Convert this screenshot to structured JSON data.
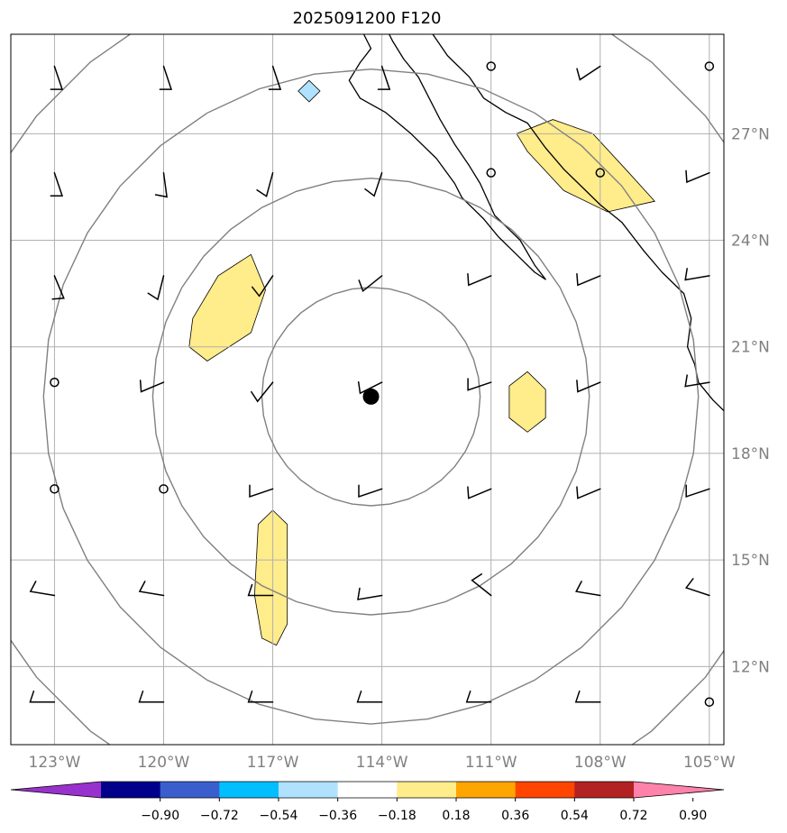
{
  "title": "2025091200 F120",
  "map": {
    "lon_range": [
      -124.2,
      -104.6
    ],
    "lat_range": [
      9.8,
      29.8
    ],
    "lon_ticks": [
      {
        "value": -123,
        "label": "123°W"
      },
      {
        "value": -120,
        "label": "120°W"
      },
      {
        "value": -117,
        "label": "117°W"
      },
      {
        "value": -114,
        "label": "114°W"
      },
      {
        "value": -111,
        "label": "111°W"
      },
      {
        "value": -108,
        "label": "108°W"
      },
      {
        "value": -105,
        "label": "105°W"
      }
    ],
    "lat_ticks": [
      {
        "value": 27,
        "label": "27°N"
      },
      {
        "value": 24,
        "label": "24°N"
      },
      {
        "value": 21,
        "label": "21°N"
      },
      {
        "value": 18,
        "label": "18°N"
      },
      {
        "value": 15,
        "label": "15°N"
      },
      {
        "value": 12,
        "label": "12°N"
      }
    ],
    "storm_center": {
      "lon": -114.3,
      "lat": 19.6
    },
    "range_rings_deg": [
      3,
      6,
      9,
      12
    ],
    "grid": true,
    "colors": {
      "grid": "#b0b0b0",
      "rings": "#808080",
      "coast": "#000000"
    }
  },
  "colorbar": {
    "colors": [
      "#9932cc",
      "#00008b",
      "#3a5fcd",
      "#00bfff",
      "#b0e2ff",
      "#ffffff",
      "#ffec8b",
      "#ffa500",
      "#ff4500",
      "#b22222",
      "#ff82ab"
    ],
    "labels": [
      "−0.90",
      "−0.72",
      "−0.54",
      "−0.36",
      "−0.18",
      "0.18",
      "0.36",
      "0.54",
      "0.72",
      "0.90"
    ]
  },
  "shaded_regions": [
    {
      "level": 0.18,
      "color": "#ffec8b",
      "points": [
        [
          -110.3,
          27.0
        ],
        [
          -109.3,
          27.4
        ],
        [
          -108.2,
          27.0
        ],
        [
          -107.3,
          26.0
        ],
        [
          -106.5,
          25.1
        ],
        [
          -107.8,
          24.8
        ],
        [
          -109.0,
          25.4
        ],
        [
          -110.0,
          26.5
        ]
      ]
    },
    {
      "level": 0.18,
      "color": "#ffec8b",
      "points": [
        [
          -119.2,
          21.8
        ],
        [
          -118.5,
          23.0
        ],
        [
          -117.6,
          23.6
        ],
        [
          -117.2,
          22.6
        ],
        [
          -117.6,
          21.4
        ],
        [
          -118.8,
          20.6
        ],
        [
          -119.3,
          21.0
        ]
      ]
    },
    {
      "level": 0.18,
      "color": "#ffec8b",
      "points": [
        [
          -110.5,
          19.9
        ],
        [
          -110.0,
          20.3
        ],
        [
          -109.5,
          19.8
        ],
        [
          -109.5,
          19.0
        ],
        [
          -110.0,
          18.6
        ],
        [
          -110.5,
          19.0
        ]
      ]
    },
    {
      "level": 0.18,
      "color": "#ffec8b",
      "points": [
        [
          -117.4,
          16.0
        ],
        [
          -117.0,
          16.4
        ],
        [
          -116.6,
          16.0
        ],
        [
          -116.6,
          13.2
        ],
        [
          -116.9,
          12.6
        ],
        [
          -117.3,
          12.8
        ],
        [
          -117.5,
          14.0
        ]
      ]
    },
    {
      "level": -0.18,
      "color": "#b0e2ff",
      "points": [
        [
          -116.0,
          28.5
        ],
        [
          -116.3,
          28.2
        ],
        [
          -116.0,
          27.9
        ],
        [
          -115.7,
          28.2
        ]
      ]
    }
  ],
  "barbs": [
    {
      "lon": -123,
      "lat": 28.9,
      "u": 5,
      "v": -15
    },
    {
      "lon": -120,
      "lat": 28.9,
      "u": 5,
      "v": -15
    },
    {
      "lon": -117,
      "lat": 28.9,
      "u": 5,
      "v": -15
    },
    {
      "lon": -114,
      "lat": 28.9,
      "u": 5,
      "v": -15
    },
    {
      "lon": -111,
      "lat": 28.9,
      "calm": true
    },
    {
      "lon": -108,
      "lat": 28.9,
      "u": -12,
      "v": -8
    },
    {
      "lon": -105,
      "lat": 28.9,
      "calm": true
    },
    {
      "lon": -123,
      "lat": 25.9,
      "u": 5,
      "v": -15
    },
    {
      "lon": -120,
      "lat": 25.9,
      "u": 2,
      "v": -15
    },
    {
      "lon": -117,
      "lat": 25.9,
      "u": -4,
      "v": -15
    },
    {
      "lon": -114,
      "lat": 25.9,
      "u": -4,
      "v": -12
    },
    {
      "lon": -111,
      "lat": 25.9,
      "calm": true
    },
    {
      "lon": -108,
      "lat": 25.9,
      "calm": true
    },
    {
      "lon": -105,
      "lat": 25.9,
      "u": -12,
      "v": -5
    },
    {
      "lon": -123,
      "lat": 23.0,
      "u": 5,
      "v": -12
    },
    {
      "lon": -120,
      "lat": 23.0,
      "u": -3,
      "v": -12
    },
    {
      "lon": -117,
      "lat": 23.0,
      "u": -8,
      "v": -12
    },
    {
      "lon": -114,
      "lat": 23.0,
      "u": -10,
      "v": -8
    },
    {
      "lon": -111,
      "lat": 23.0,
      "u": -12,
      "v": -5
    },
    {
      "lon": -108,
      "lat": 23.0,
      "u": -12,
      "v": -5
    },
    {
      "lon": -105,
      "lat": 23.0,
      "u": -12,
      "v": -2
    },
    {
      "lon": -123,
      "lat": 20.0,
      "calm": true
    },
    {
      "lon": -120,
      "lat": 20.0,
      "u": -12,
      "v": -5
    },
    {
      "lon": -117,
      "lat": 20.0,
      "u": -8,
      "v": -10
    },
    {
      "lon": -114,
      "lat": 20.0,
      "u": -10,
      "v": -5
    },
    {
      "lon": -111,
      "lat": 20.0,
      "u": -12,
      "v": -4
    },
    {
      "lon": -108,
      "lat": 20.0,
      "u": -12,
      "v": -5
    },
    {
      "lon": -105,
      "lat": 20.0,
      "u": -12,
      "v": -2
    },
    {
      "lon": -123,
      "lat": 17.0,
      "calm": true
    },
    {
      "lon": -120,
      "lat": 17.0,
      "calm": true
    },
    {
      "lon": -117,
      "lat": 17.0,
      "u": -12,
      "v": -4
    },
    {
      "lon": -114,
      "lat": 17.0,
      "u": -12,
      "v": -4
    },
    {
      "lon": -111,
      "lat": 17.0,
      "u": -12,
      "v": -5
    },
    {
      "lon": -108,
      "lat": 17.0,
      "u": -12,
      "v": -5
    },
    {
      "lon": -105,
      "lat": 17.0,
      "u": -12,
      "v": -4
    },
    {
      "lon": -123,
      "lat": 14.0,
      "u": -12,
      "v": 2
    },
    {
      "lon": -120,
      "lat": 14.0,
      "u": -12,
      "v": 2
    },
    {
      "lon": -117,
      "lat": 14.0,
      "u": -12,
      "v": 0
    },
    {
      "lon": -114,
      "lat": 14.0,
      "u": -12,
      "v": -2
    },
    {
      "lon": -111,
      "lat": 14.0,
      "u": -10,
      "v": 8
    },
    {
      "lon": -108,
      "lat": 14.0,
      "u": -12,
      "v": 2
    },
    {
      "lon": -105,
      "lat": 14.0,
      "u": -12,
      "v": 4
    },
    {
      "lon": -123,
      "lat": 11.0,
      "u": -12,
      "v": 0
    },
    {
      "lon": -120,
      "lat": 11.0,
      "u": -12,
      "v": 0
    },
    {
      "lon": -117,
      "lat": 11.0,
      "u": -12,
      "v": 0
    },
    {
      "lon": -114,
      "lat": 11.0,
      "u": -12,
      "v": 0
    },
    {
      "lon": -111,
      "lat": 11.0,
      "u": -12,
      "v": 0
    },
    {
      "lon": -108,
      "lat": 11.0,
      "u": -12,
      "v": 0
    },
    {
      "lon": -105,
      "lat": 11.0,
      "calm": true
    }
  ],
  "coastlines": [
    [
      [
        -114.5,
        29.8
      ],
      [
        -114.3,
        29.4
      ],
      [
        -114.6,
        29.0
      ],
      [
        -114.9,
        28.5
      ],
      [
        -114.6,
        28.0
      ],
      [
        -113.9,
        27.6
      ],
      [
        -113.2,
        27.0
      ],
      [
        -112.5,
        26.3
      ],
      [
        -112.0,
        25.6
      ],
      [
        -111.8,
        25.2
      ],
      [
        -111.2,
        24.6
      ],
      [
        -110.8,
        24.1
      ],
      [
        -110.3,
        23.6
      ],
      [
        -109.8,
        23.1
      ],
      [
        -109.5,
        22.9
      ],
      [
        -109.8,
        23.3
      ],
      [
        -110.2,
        24.0
      ],
      [
        -110.5,
        24.3
      ],
      [
        -110.9,
        24.7
      ],
      [
        -111.3,
        25.6
      ],
      [
        -111.6,
        26.1
      ],
      [
        -112.0,
        26.7
      ],
      [
        -112.4,
        27.4
      ],
      [
        -112.7,
        28.0
      ],
      [
        -113.0,
        28.6
      ],
      [
        -113.4,
        29.1
      ],
      [
        -113.7,
        29.6
      ],
      [
        -113.8,
        29.8
      ]
    ],
    [
      [
        -112.6,
        29.8
      ],
      [
        -112.2,
        29.2
      ],
      [
        -111.6,
        28.6
      ],
      [
        -111.2,
        28.0
      ],
      [
        -110.6,
        27.6
      ],
      [
        -110.0,
        27.3
      ],
      [
        -109.5,
        26.6
      ],
      [
        -109.0,
        26.0
      ],
      [
        -108.5,
        25.5
      ],
      [
        -108.0,
        25.0
      ],
      [
        -107.4,
        24.5
      ],
      [
        -106.8,
        23.7
      ],
      [
        -106.3,
        23.1
      ],
      [
        -105.7,
        22.5
      ],
      [
        -105.5,
        21.8
      ],
      [
        -105.6,
        21.0
      ],
      [
        -105.4,
        20.5
      ],
      [
        -105.3,
        20.0
      ],
      [
        -104.9,
        19.5
      ],
      [
        -104.6,
        19.2
      ]
    ]
  ]
}
